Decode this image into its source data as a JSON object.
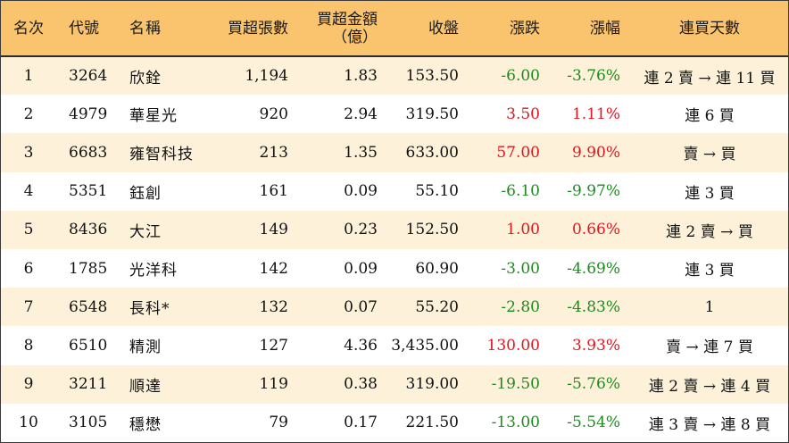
{
  "headers": {
    "rank": "名次",
    "code": "代號",
    "name": "名稱",
    "net_buy_lots": "買超張數",
    "net_buy_amount_line1": "買超金額",
    "net_buy_amount_line2": "（億）",
    "close": "收盤",
    "change": "漲跌",
    "change_pct": "漲幅",
    "consecutive_days": "連買天數"
  },
  "colors": {
    "header_bg": "#f9c46d",
    "odd_row_bg": "#fdf2d9",
    "even_row_bg": "#ffffff",
    "negative": "#1e8a1e",
    "positive": "#e3141e"
  },
  "rows": [
    {
      "rank": "1",
      "code": "3264",
      "name": "欣銓",
      "lots": "1,194",
      "amount": "1.83",
      "close": "153.50",
      "change": "-6.00",
      "pct": "-3.76%",
      "direction": "neg",
      "days": "連 2 賣 → 連 11 買"
    },
    {
      "rank": "2",
      "code": "4979",
      "name": "華星光",
      "lots": "920",
      "amount": "2.94",
      "close": "319.50",
      "change": "3.50",
      "pct": "1.11%",
      "direction": "pos",
      "days": "連 6 買"
    },
    {
      "rank": "3",
      "code": "6683",
      "name": "雍智科技",
      "lots": "213",
      "amount": "1.35",
      "close": "633.00",
      "change": "57.00",
      "pct": "9.90%",
      "direction": "pos",
      "days": "賣 → 買"
    },
    {
      "rank": "4",
      "code": "5351",
      "name": "鈺創",
      "lots": "161",
      "amount": "0.09",
      "close": "55.10",
      "change": "-6.10",
      "pct": "-9.97%",
      "direction": "neg",
      "days": "連 3 買"
    },
    {
      "rank": "5",
      "code": "8436",
      "name": "大江",
      "lots": "149",
      "amount": "0.23",
      "close": "152.50",
      "change": "1.00",
      "pct": "0.66%",
      "direction": "pos",
      "days": "連 2 賣 → 買"
    },
    {
      "rank": "6",
      "code": "1785",
      "name": "光洋科",
      "lots": "142",
      "amount": "0.09",
      "close": "60.90",
      "change": "-3.00",
      "pct": "-4.69%",
      "direction": "neg",
      "days": "連 3 買"
    },
    {
      "rank": "7",
      "code": "6548",
      "name": "長科*",
      "lots": "132",
      "amount": "0.07",
      "close": "55.20",
      "change": "-2.80",
      "pct": "-4.83%",
      "direction": "neg",
      "days": "1"
    },
    {
      "rank": "8",
      "code": "6510",
      "name": "精測",
      "lots": "127",
      "amount": "4.36",
      "close": "3,435.00",
      "change": "130.00",
      "pct": "3.93%",
      "direction": "pos",
      "days": "賣 → 連 7 買"
    },
    {
      "rank": "9",
      "code": "3211",
      "name": "順達",
      "lots": "119",
      "amount": "0.38",
      "close": "319.00",
      "change": "-19.50",
      "pct": "-5.76%",
      "direction": "neg",
      "days": "連 2 賣 → 連 4 買"
    },
    {
      "rank": "10",
      "code": "3105",
      "name": "穩懋",
      "lots": "79",
      "amount": "0.17",
      "close": "221.50",
      "change": "-13.00",
      "pct": "-5.54%",
      "direction": "neg",
      "days": "連 3 賣 → 連 8 買"
    }
  ]
}
